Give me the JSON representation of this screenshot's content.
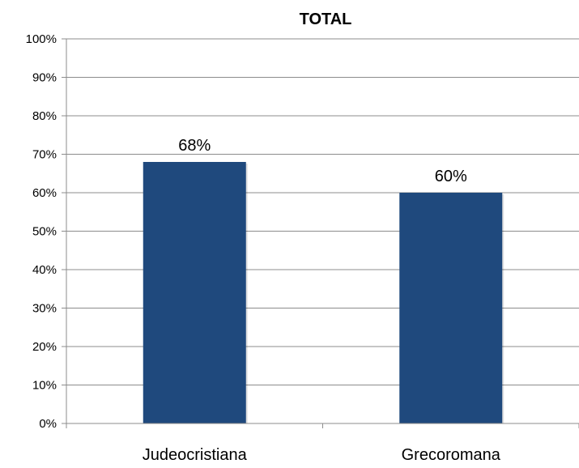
{
  "chart_data": {
    "type": "bar",
    "title": "TOTAL",
    "categories": [
      "Judeocristiana",
      "Grecoromana"
    ],
    "values": [
      68,
      60
    ],
    "data_labels": [
      "68%",
      "60%"
    ],
    "ylim": [
      0,
      100
    ],
    "yticks": [
      "0%",
      "10%",
      "20%",
      "30%",
      "40%",
      "50%",
      "60%",
      "70%",
      "80%",
      "90%",
      "100%"
    ],
    "grid": true,
    "legend": "none",
    "bar_color": "#1F497D",
    "xlabel": "",
    "ylabel": ""
  }
}
